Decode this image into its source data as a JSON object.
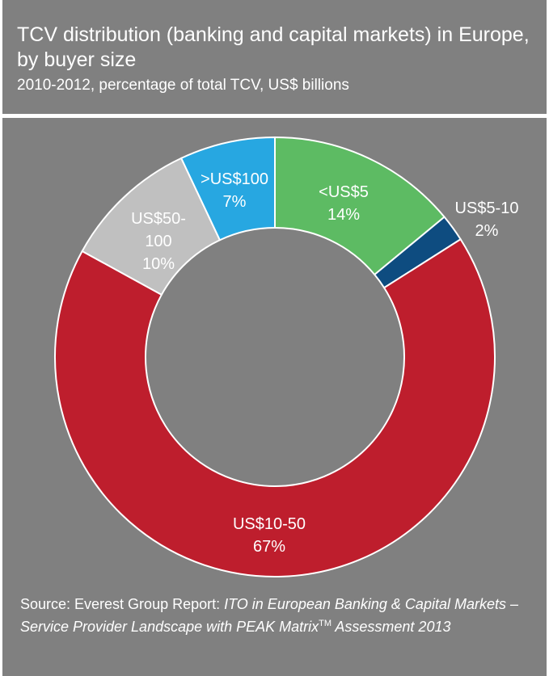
{
  "chart_data": {
    "type": "pie",
    "donut": true,
    "title": "TCV distribution (banking and capital markets) in Europe, by buyer size",
    "subtitle": "2010-2012, percentage of total TCV, US$ billions",
    "categories": [
      "<US$5",
      "US$5-10",
      "US$10-50",
      "US$50-100",
      ">US$100"
    ],
    "values": [
      14,
      2,
      67,
      10,
      7
    ],
    "value_labels": [
      "14%",
      "2%",
      "67%",
      "10%",
      "7%"
    ],
    "colors": [
      "#5DBB63",
      "#0E4C80",
      "#BE1E2D",
      "#C0C0C0",
      "#27A7E1"
    ],
    "start": "12 o'clock, clockwise"
  },
  "source": {
    "prefix": "Source: Everest Group Report: ",
    "italic": "ITO in European Banking & Capital Markets – Service Provider Landscape with PEAK Matrix",
    "tm": "TM",
    "suffix": " Assessment 2013"
  },
  "colors": {
    "background": "#808080",
    "text": "#FFFFFF"
  }
}
